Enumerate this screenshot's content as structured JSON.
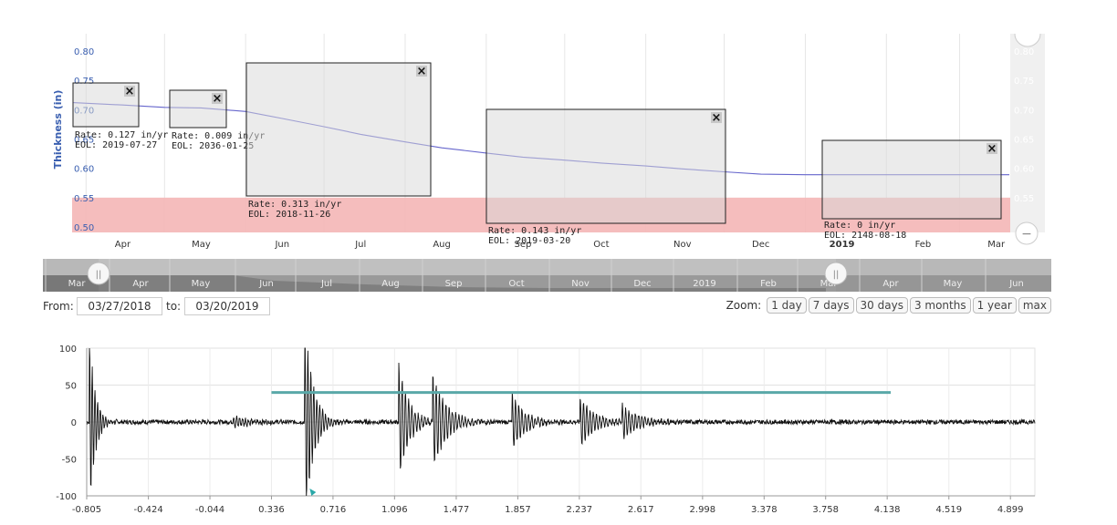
{
  "chart_data": [
    {
      "type": "line",
      "ylabel": "Thickness (in)",
      "ylim": [
        0.5,
        0.8
      ],
      "y_ticks": [
        "0.80",
        "0.75",
        "0.70",
        "0.65",
        "0.60",
        "0.55",
        "0.50"
      ],
      "x_ticks": [
        "Apr",
        "May",
        "Jun",
        "Jul",
        "Aug",
        "Sep",
        "Oct",
        "Nov",
        "Dec",
        "2019",
        "Feb",
        "Mar"
      ],
      "x_range": [
        "2018-03-27",
        "2019-03-20"
      ],
      "series": [
        {
          "x": [
            "2018-03-27",
            "2018-04-15",
            "2018-05-01",
            "2018-05-15",
            "2018-06-01",
            "2018-06-15",
            "2018-07-01",
            "2018-07-15",
            "2018-08-01",
            "2018-08-15",
            "2018-09-01",
            "2018-09-15",
            "2018-10-01",
            "2018-10-15",
            "2018-11-01",
            "2018-11-15",
            "2018-12-01",
            "2018-12-15",
            "2019-01-01",
            "2019-01-15",
            "2019-02-01",
            "2019-02-15",
            "2019-03-01",
            "2019-03-20"
          ],
          "y": [
            0.712,
            0.708,
            0.704,
            0.703,
            0.697,
            0.685,
            0.671,
            0.658,
            0.645,
            0.635,
            0.626,
            0.619,
            0.614,
            0.609,
            0.604,
            0.599,
            0.594,
            0.59,
            0.589,
            0.589,
            0.589,
            0.589,
            0.589,
            0.589
          ],
          "color": "#6666cc"
        }
      ],
      "threshold_band": {
        "from": 0.5,
        "to": 0.55,
        "color": "#f4b6b6"
      },
      "annotations": [
        {
          "rate": "Rate: 0.127 in/yr",
          "eol": "EOL: 2019-07-27",
          "close": "×"
        },
        {
          "rate": "Rate: 0.009 in/yr",
          "eol": "EOL: 2036-01-25",
          "close": "×"
        },
        {
          "rate": "Rate: 0.313 in/yr",
          "eol": "EOL: 2018-11-26",
          "close": "×"
        },
        {
          "rate": "Rate: 0.143 in/yr",
          "eol": "EOL: 2019-03-20",
          "close": "×"
        },
        {
          "rate": "Rate: 0 in/yr",
          "eol": "EOL: 2148-08-18",
          "close": "×"
        }
      ]
    },
    {
      "type": "line",
      "ylim": [
        -100,
        100
      ],
      "y_ticks": [
        "100",
        "50",
        "0",
        "-50",
        "-100"
      ],
      "xlim": [
        -0.805,
        5.05
      ],
      "x_ticks": [
        "-0.805",
        "-0.424",
        "-0.044",
        "0.336",
        "0.716",
        "1.096",
        "1.477",
        "1.857",
        "2.237",
        "2.617",
        "2.998",
        "3.378",
        "3.758",
        "4.138",
        "4.519",
        "4.899"
      ],
      "waveform_bursts": [
        {
          "t": -0.79,
          "amp": 130,
          "decay": 0.035,
          "freq": 60
        },
        {
          "t": 0.54,
          "amp": 150,
          "decay": 0.05,
          "freq": 55
        },
        {
          "t": 1.12,
          "amp": 85,
          "decay": 0.06,
          "freq": 50
        },
        {
          "t": 1.33,
          "amp": 70,
          "decay": 0.08,
          "freq": 50
        },
        {
          "t": 1.82,
          "amp": 40,
          "decay": 0.08,
          "freq": 50
        },
        {
          "t": 2.24,
          "amp": 34,
          "decay": 0.09,
          "freq": 50
        },
        {
          "t": 2.5,
          "amp": 22,
          "decay": 0.1,
          "freq": 50
        },
        {
          "t": 0.1,
          "amp": 8,
          "decay": 0.12,
          "freq": 55
        }
      ],
      "noise_amp": 3,
      "gate": {
        "y": 40,
        "x_start": 0.336,
        "x_end": 4.16,
        "color": "#5aa8a8"
      }
    }
  ],
  "navigator": {
    "labels": [
      "Mar",
      "Apr",
      "May",
      "Jun",
      "Jul",
      "Aug",
      "Sep",
      "Oct",
      "Nov",
      "Dec",
      "2019",
      "Feb",
      "Mar",
      "Apr",
      "May",
      "Jun"
    ],
    "handle_glyph": "||"
  },
  "range": {
    "from_label": "From:",
    "from_value": "03/27/2018",
    "to_label": "to:",
    "to_value": "03/20/2019",
    "zoom_label": "Zoom:",
    "zoom_buttons": [
      "1 day",
      "7 days",
      "30 days",
      "3 months",
      "1 year",
      "max"
    ]
  },
  "right_axis_faint": [
    "0.80",
    "0.75",
    "0.70",
    "0.65",
    "0.60",
    "0.55"
  ],
  "collapse_glyph": "−"
}
